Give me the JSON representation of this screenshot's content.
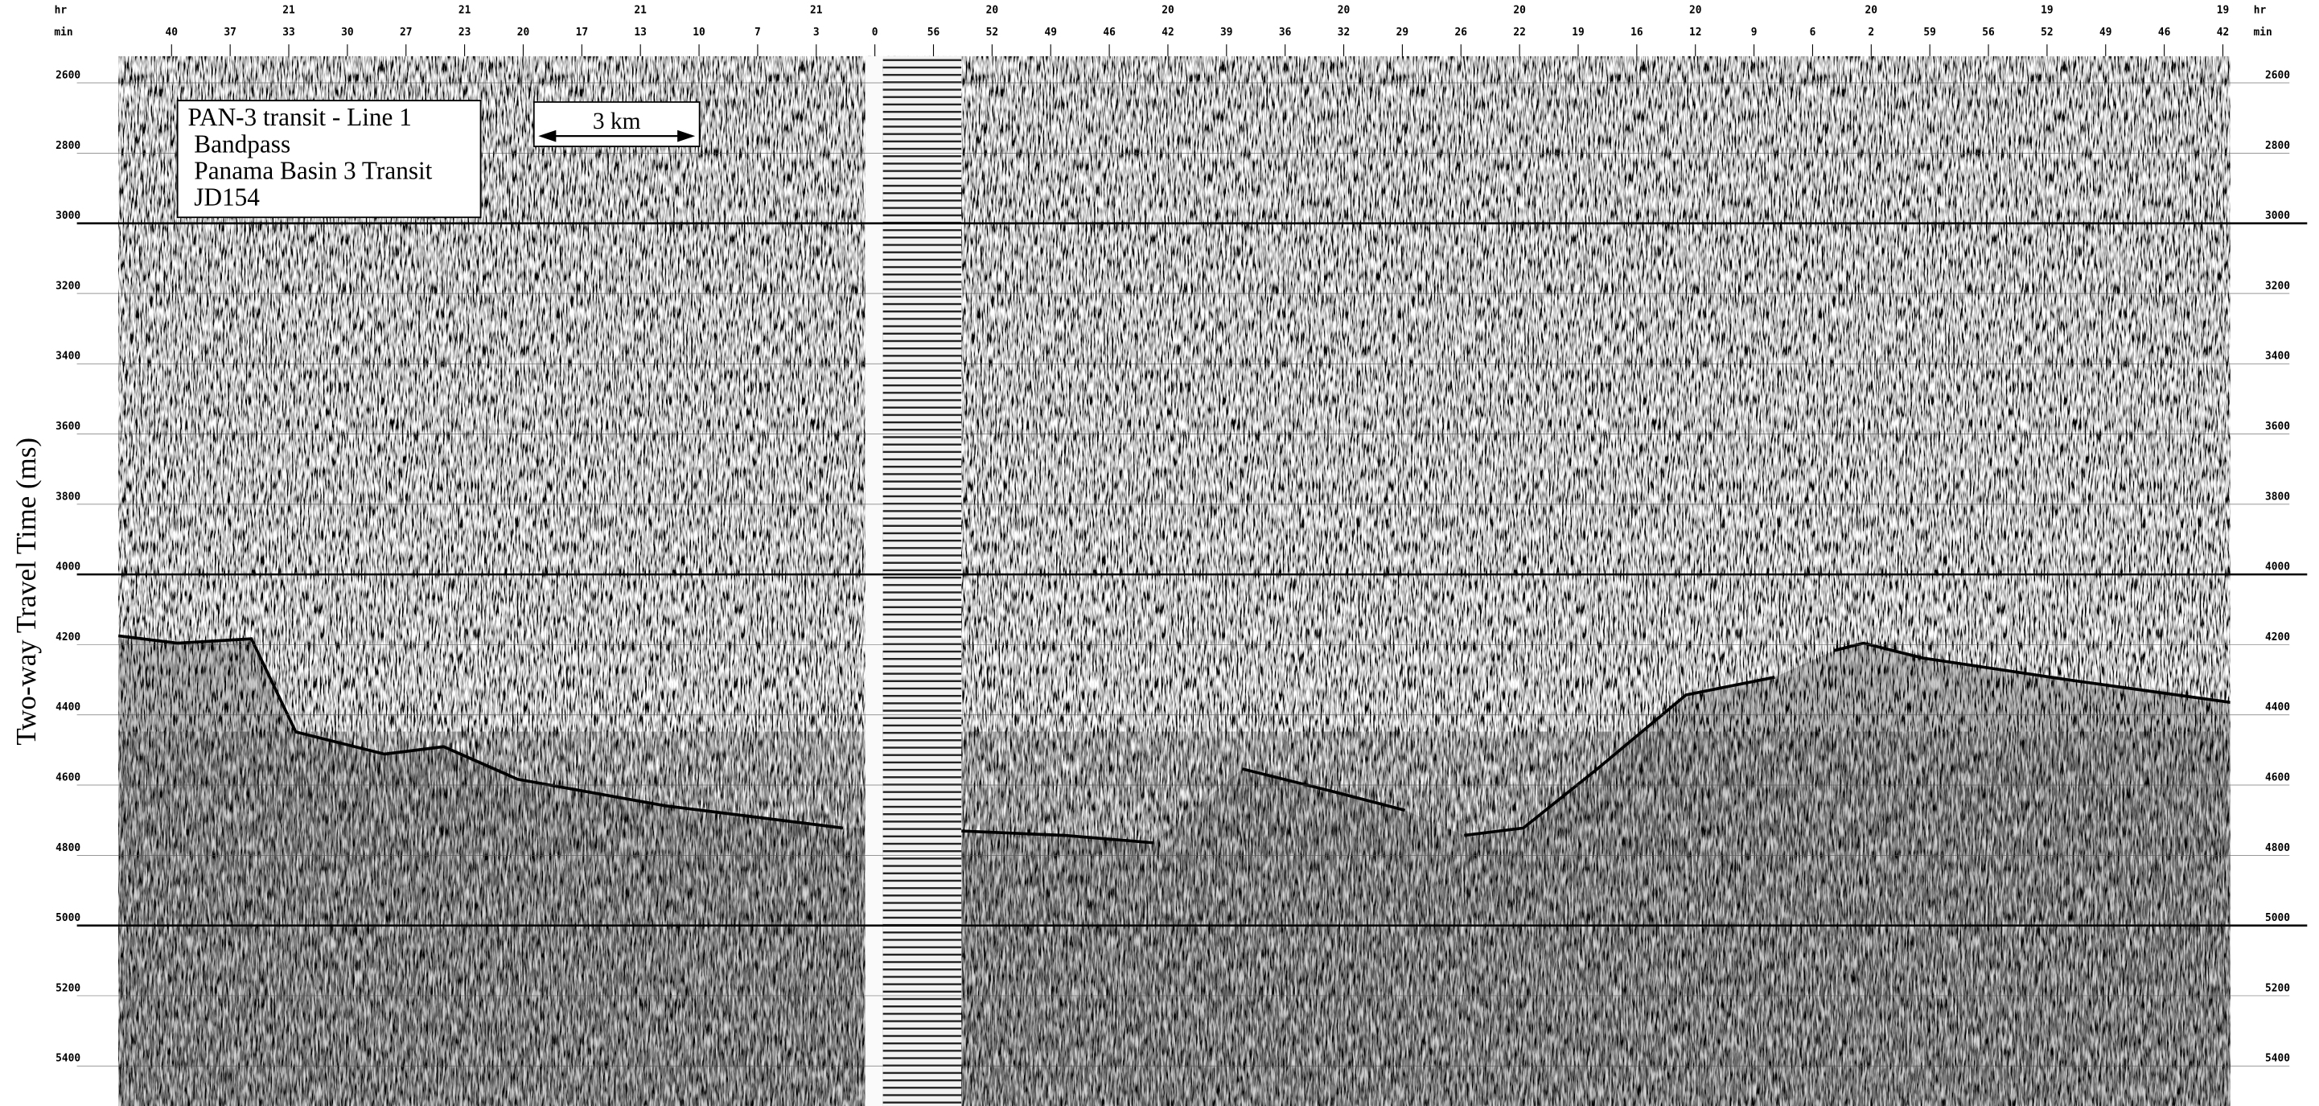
{
  "y_axis": {
    "label": "Two-way Travel Time (ms)",
    "range": [
      2524,
      5514
    ],
    "ticks": [
      2600,
      2800,
      3000,
      3200,
      3400,
      3600,
      3800,
      4000,
      4200,
      4400,
      4600,
      4800,
      5000,
      5200,
      5400
    ]
  },
  "top_axis": {
    "hr_label": "hr",
    "min_label": "min",
    "minutes": [
      40,
      37,
      33,
      30,
      27,
      23,
      20,
      17,
      13,
      10,
      7,
      3,
      0,
      56,
      52,
      49,
      46,
      42,
      39,
      36,
      32,
      29,
      26,
      22,
      19,
      16,
      12,
      9,
      6,
      2,
      59,
      56,
      52,
      49,
      46,
      42
    ],
    "hours": [
      null,
      null,
      21,
      null,
      null,
      21,
      null,
      null,
      21,
      null,
      null,
      21,
      null,
      null,
      20,
      null,
      null,
      20,
      null,
      null,
      20,
      null,
      null,
      20,
      null,
      null,
      20,
      null,
      null,
      20,
      null,
      null,
      19,
      null,
      null,
      19
    ]
  },
  "legend": {
    "lines": [
      "PAN-3 transit - Line 1",
      " Bandpass",
      " Panama Basin 3 Transit",
      " JD154"
    ]
  },
  "scale_bar": "3 km"
}
